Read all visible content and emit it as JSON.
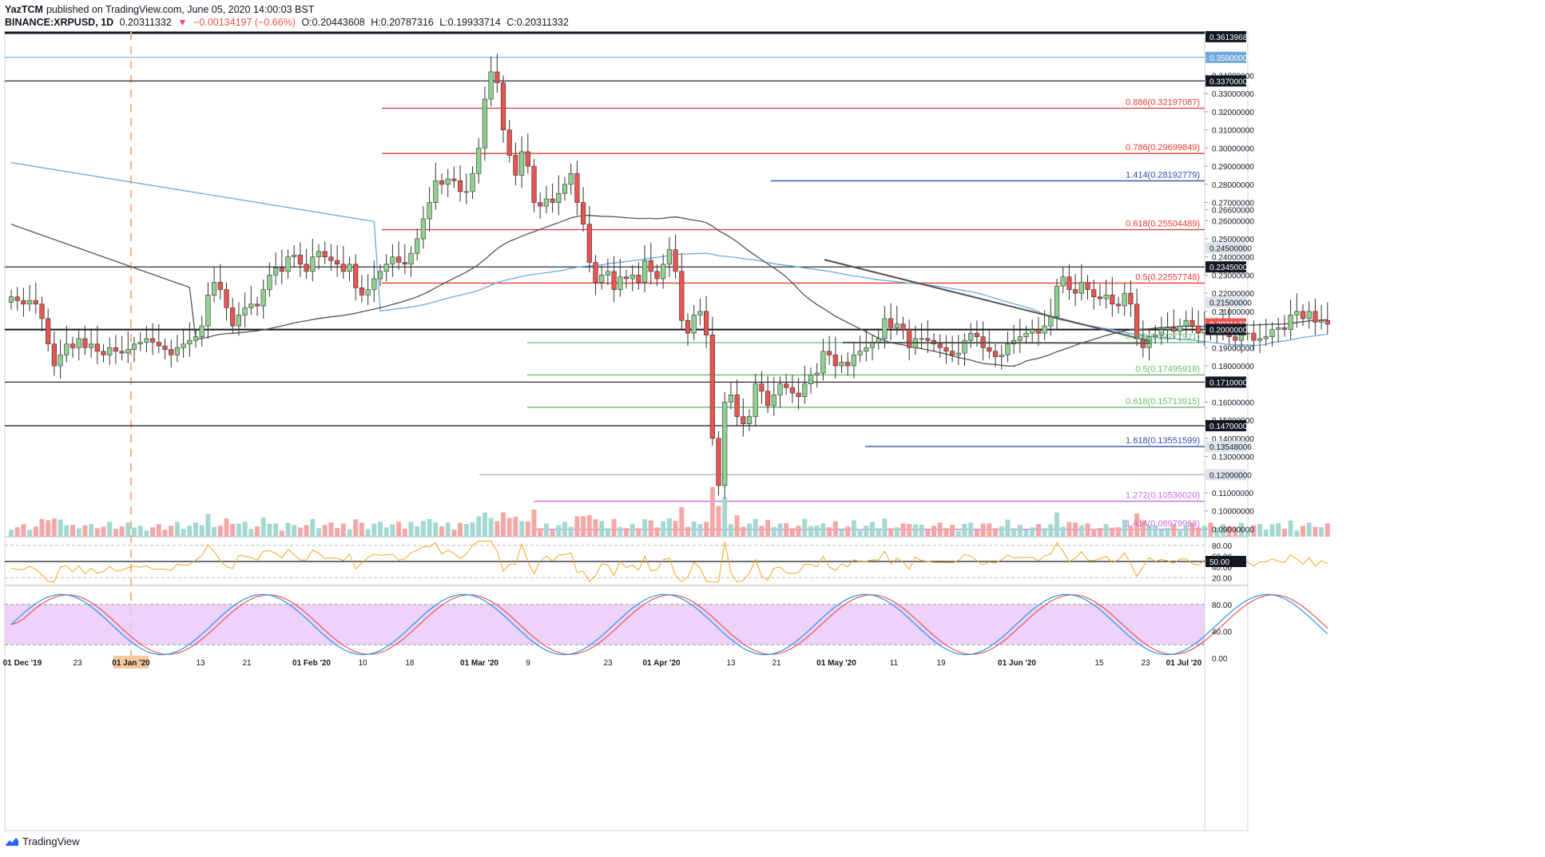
{
  "header": {
    "author": "YazTCM",
    "published": "published on TradingView.com, June 05, 2020 14:00:03 BST",
    "symbol": "BINANCE:XRPUSD, 1D",
    "last": "0.20311332",
    "change": "−0.00134197 (−0.66%)",
    "o_label": "O:",
    "o": "0.20443608",
    "h_label": "H:",
    "h": "0.20787316",
    "l_label": "L:",
    "l": "0.19933714",
    "c_label": "C:",
    "c": "0.20311332"
  },
  "footer": {
    "brand": "TradingView"
  },
  "colors": {
    "up": "#8fd18f",
    "down": "#e8544f",
    "ma200": "#6fa8dc",
    "ma100": "#555555",
    "fib_red": "#e53935",
    "fib_green": "#66bb6a",
    "fib_blue": "#3949ab",
    "fib_purple": "#c36be0",
    "rsi": "#f5a623",
    "stoch_k": "#2196f3",
    "stoch_d": "#ef5350",
    "stoch_band": "#e8c7f7"
  },
  "chart_data": {
    "type": "candlestick",
    "price_axis_ticks": [
      "0.36139684",
      "0.35000000",
      "0.34000000",
      "0.33700000",
      "0.33000000",
      "0.32000000",
      "0.31000000",
      "0.30000000",
      "0.29000000",
      "0.28000000",
      "0.27000000",
      "0.26600000",
      "0.26000000",
      "0.25000000",
      "0.24500000",
      "0.24000000",
      "0.23450000",
      "0.23000000",
      "0.22000000",
      "0.21500000",
      "0.21000000",
      "0.20311332",
      "0.20000000",
      "0.19000000",
      "0.18000000",
      "0.17100000",
      "0.16000000",
      "0.15000000",
      "0.14700000",
      "0.14000000",
      "0.13548006",
      "0.13000000",
      "0.12000000",
      "0.11000000",
      "0.10000000",
      "0.09000000"
    ],
    "x_axis_labels": [
      "01 Dec '19",
      "23",
      "01 Jan '20",
      "13",
      "21",
      "01 Feb '20",
      "10",
      "18",
      "01 Mar '20",
      "9",
      "23",
      "01 Apr '20",
      "13",
      "21",
      "01 May '20",
      "11",
      "19",
      "01 Jun '20",
      "15",
      "23",
      "01 Jul '20"
    ],
    "horizontal_levels": [
      {
        "price": 0.337,
        "kind": "support"
      },
      {
        "price": 0.2345,
        "kind": "support"
      },
      {
        "price": 0.2,
        "kind": "support"
      },
      {
        "price": 0.171,
        "kind": "support"
      },
      {
        "price": 0.147,
        "kind": "support"
      },
      {
        "price": 0.35,
        "kind": "resistance"
      },
      {
        "price": 0.12,
        "kind": "support"
      }
    ],
    "fib_levels": [
      {
        "label": "0.886(0.32197087)",
        "price": 0.32197,
        "color": "red"
      },
      {
        "label": "0.786(0.29699849)",
        "price": 0.297,
        "color": "red"
      },
      {
        "label": "1.414(0.28192779)",
        "price": 0.28193,
        "color": "blue"
      },
      {
        "label": "0.618(0.25504489)",
        "price": 0.25504,
        "color": "red"
      },
      {
        "label": "0.5(0.22557748)",
        "price": 0.22558,
        "color": "red"
      },
      {
        "label": "0.382(0.19277921)",
        "price": 0.19278,
        "color": "green"
      },
      {
        "label": "0.5(0.17495918)",
        "price": 0.17496,
        "color": "green"
      },
      {
        "label": "0.618(0.15713915)",
        "price": 0.15714,
        "color": "green"
      },
      {
        "label": "1.618(0.13551599)",
        "price": 0.13552,
        "color": "blue"
      },
      {
        "label": "1.272(0.10536020)",
        "price": 0.10536,
        "color": "purple"
      },
      {
        "label": "1.414(0.08979963)",
        "price": 0.0898,
        "color": "purple"
      }
    ],
    "closes": [
      0.218,
      0.216,
      0.214,
      0.216,
      0.214,
      0.206,
      0.192,
      0.18,
      0.186,
      0.192,
      0.19,
      0.195,
      0.19,
      0.192,
      0.188,
      0.186,
      0.19,
      0.188,
      0.187,
      0.189,
      0.192,
      0.193,
      0.195,
      0.193,
      0.191,
      0.189,
      0.186,
      0.19,
      0.192,
      0.194,
      0.196,
      0.202,
      0.219,
      0.226,
      0.222,
      0.212,
      0.202,
      0.208,
      0.212,
      0.214,
      0.213,
      0.222,
      0.23,
      0.234,
      0.232,
      0.24,
      0.241,
      0.236,
      0.232,
      0.24,
      0.243,
      0.24,
      0.238,
      0.236,
      0.232,
      0.236,
      0.223,
      0.219,
      0.222,
      0.228,
      0.232,
      0.236,
      0.24,
      0.237,
      0.236,
      0.242,
      0.25,
      0.261,
      0.27,
      0.282,
      0.28,
      0.283,
      0.282,
      0.276,
      0.276,
      0.286,
      0.3,
      0.327,
      0.342,
      0.336,
      0.31,
      0.296,
      0.285,
      0.298,
      0.29,
      0.27,
      0.268,
      0.272,
      0.27,
      0.275,
      0.28,
      0.286,
      0.27,
      0.258,
      0.237,
      0.226,
      0.23,
      0.232,
      0.222,
      0.229,
      0.228,
      0.23,
      0.226,
      0.238,
      0.232,
      0.228,
      0.236,
      0.244,
      0.232,
      0.205,
      0.198,
      0.208,
      0.21,
      0.197,
      0.14,
      0.114,
      0.16,
      0.164,
      0.152,
      0.148,
      0.152,
      0.17,
      0.166,
      0.158,
      0.164,
      0.17,
      0.168,
      0.165,
      0.163,
      0.17,
      0.175,
      0.176,
      0.188,
      0.186,
      0.18,
      0.182,
      0.18,
      0.186,
      0.188,
      0.19,
      0.193,
      0.195,
      0.206,
      0.201,
      0.203,
      0.2,
      0.19,
      0.195,
      0.195,
      0.194,
      0.192,
      0.19,
      0.188,
      0.186,
      0.187,
      0.194,
      0.198,
      0.196,
      0.19,
      0.188,
      0.185,
      0.186,
      0.192,
      0.194,
      0.196,
      0.198,
      0.2,
      0.198,
      0.202,
      0.207,
      0.224,
      0.229,
      0.222,
      0.22,
      0.226,
      0.222,
      0.218,
      0.217,
      0.219,
      0.214,
      0.213,
      0.22,
      0.214,
      0.195,
      0.19,
      0.196,
      0.197,
      0.2,
      0.201,
      0.199,
      0.202,
      0.205,
      0.202,
      0.198,
      0.2,
      0.198,
      0.201,
      0.204,
      0.196,
      0.194,
      0.198,
      0.198,
      0.194,
      0.195,
      0.196,
      0.2,
      0.201,
      0.2,
      0.208,
      0.21,
      0.206,
      0.21,
      0.204,
      0.205,
      0.203
    ]
  }
}
